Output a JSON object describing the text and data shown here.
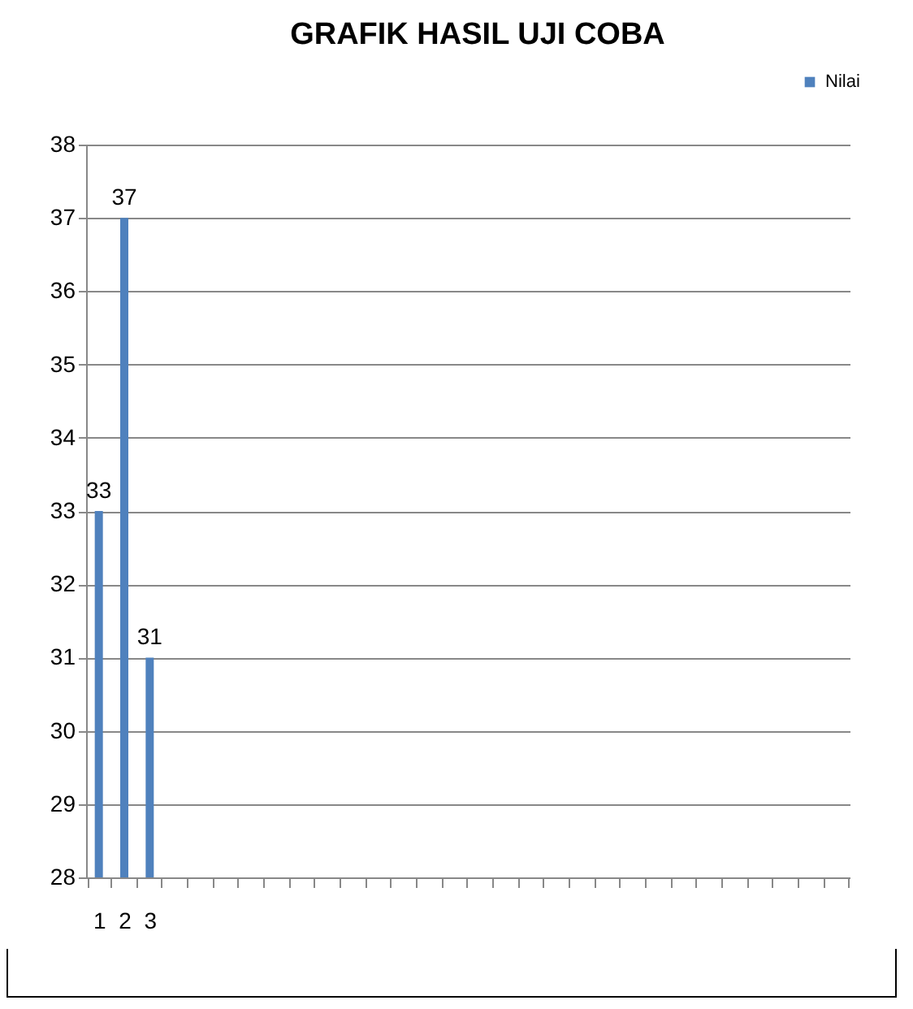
{
  "chart_data": {
    "type": "bar",
    "title": "GRAFIK HASIL UJI COBA",
    "categories": [
      "1",
      "2",
      "3",
      null,
      null,
      null,
      null,
      null,
      null,
      null,
      null,
      null,
      null,
      null,
      null,
      null,
      null,
      null,
      null,
      null,
      null,
      null,
      null,
      null,
      null,
      null,
      null,
      null,
      null,
      null
    ],
    "series": [
      {
        "name": "Nilai",
        "color": "#4f81bd",
        "values": [
          33,
          37,
          31,
          null,
          null,
          null,
          null,
          null,
          null,
          null,
          null,
          null,
          null,
          null,
          null,
          null,
          null,
          null,
          null,
          null,
          null,
          null,
          null,
          null,
          null,
          null,
          null,
          null,
          null,
          null
        ]
      }
    ],
    "ylim": [
      28,
      38
    ],
    "yticks": [
      28,
      29,
      30,
      31,
      32,
      33,
      34,
      35,
      36,
      37,
      38
    ],
    "grid": "y",
    "legend": "top right",
    "data_labels": true
  }
}
